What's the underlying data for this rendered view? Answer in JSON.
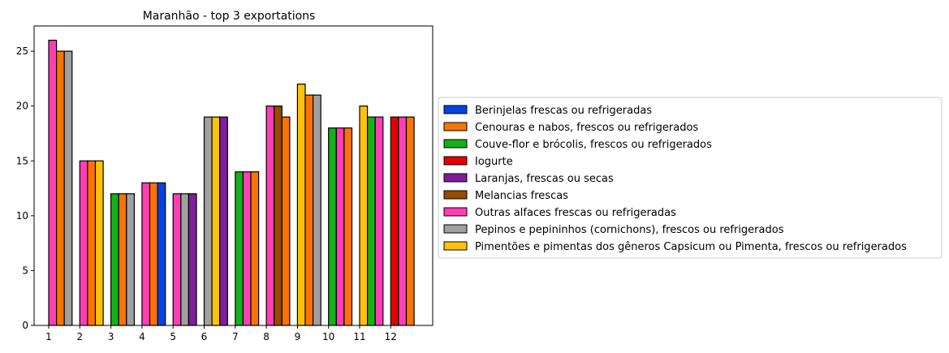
{
  "chart_data": {
    "type": "bar",
    "title": "Maranhão - top 3 exportations",
    "xlabel": "",
    "ylabel": "",
    "categories": [
      "1",
      "2",
      "3",
      "4",
      "5",
      "6",
      "7",
      "8",
      "9",
      "10",
      "11",
      "12"
    ],
    "ylim": [
      0,
      27.3
    ],
    "yticks": [
      0,
      5,
      10,
      15,
      20,
      25
    ],
    "grid": false,
    "legend_position": "center-left outside right",
    "series": [
      {
        "name": "Berinjelas frescas ou refrigeradas",
        "color": "#0343df"
      },
      {
        "name": "Cenouras e nabos, frescos ou refrigerados",
        "color": "#f97306"
      },
      {
        "name": "Couve-flor e brócolis, frescos ou refrigerados",
        "color": "#15b01a"
      },
      {
        "name": "Iogurte",
        "color": "#e50000"
      },
      {
        "name": "Laranjas, frescas ou secas",
        "color": "#7e1e9c"
      },
      {
        "name": "Melancias frescas",
        "color": "#964b00"
      },
      {
        "name": "Outras alfaces frescas ou refrigeradas",
        "color": "#ff3eb5"
      },
      {
        "name": "Pepinos e pepininhos (cornichons), frescos ou refrigerados",
        "color": "#a0a0a0"
      },
      {
        "name": "Pimentões e pimentas dos gêneros Capsicum ou Pimenta, frescos ou refrigerados",
        "color": "#ffc20a"
      }
    ],
    "groups": [
      {
        "category": "1",
        "bars": [
          {
            "series": 6,
            "value": 26
          },
          {
            "series": 1,
            "value": 25
          },
          {
            "series": 7,
            "value": 25
          }
        ]
      },
      {
        "category": "2",
        "bars": [
          {
            "series": 6,
            "value": 15
          },
          {
            "series": 1,
            "value": 15
          },
          {
            "series": 8,
            "value": 15
          }
        ]
      },
      {
        "category": "3",
        "bars": [
          {
            "series": 2,
            "value": 12
          },
          {
            "series": 1,
            "value": 12
          },
          {
            "series": 7,
            "value": 12
          }
        ]
      },
      {
        "category": "4",
        "bars": [
          {
            "series": 6,
            "value": 13
          },
          {
            "series": 1,
            "value": 13
          },
          {
            "series": 0,
            "value": 13
          }
        ]
      },
      {
        "category": "5",
        "bars": [
          {
            "series": 6,
            "value": 12
          },
          {
            "series": 7,
            "value": 12
          },
          {
            "series": 4,
            "value": 12
          }
        ]
      },
      {
        "category": "6",
        "bars": [
          {
            "series": 7,
            "value": 19
          },
          {
            "series": 8,
            "value": 19
          },
          {
            "series": 4,
            "value": 19
          }
        ]
      },
      {
        "category": "7",
        "bars": [
          {
            "series": 2,
            "value": 14
          },
          {
            "series": 6,
            "value": 14
          },
          {
            "series": 1,
            "value": 14
          }
        ]
      },
      {
        "category": "8",
        "bars": [
          {
            "series": 6,
            "value": 20
          },
          {
            "series": 5,
            "value": 20
          },
          {
            "series": 1,
            "value": 19
          }
        ]
      },
      {
        "category": "9",
        "bars": [
          {
            "series": 8,
            "value": 22
          },
          {
            "series": 1,
            "value": 21
          },
          {
            "series": 7,
            "value": 21
          }
        ]
      },
      {
        "category": "10",
        "bars": [
          {
            "series": 2,
            "value": 18
          },
          {
            "series": 6,
            "value": 18
          },
          {
            "series": 1,
            "value": 18
          }
        ]
      },
      {
        "category": "11",
        "bars": [
          {
            "series": 8,
            "value": 20
          },
          {
            "series": 2,
            "value": 19
          },
          {
            "series": 6,
            "value": 19
          }
        ]
      },
      {
        "category": "12",
        "bars": [
          {
            "series": 3,
            "value": 19
          },
          {
            "series": 6,
            "value": 19
          },
          {
            "series": 1,
            "value": 19
          }
        ]
      }
    ]
  }
}
